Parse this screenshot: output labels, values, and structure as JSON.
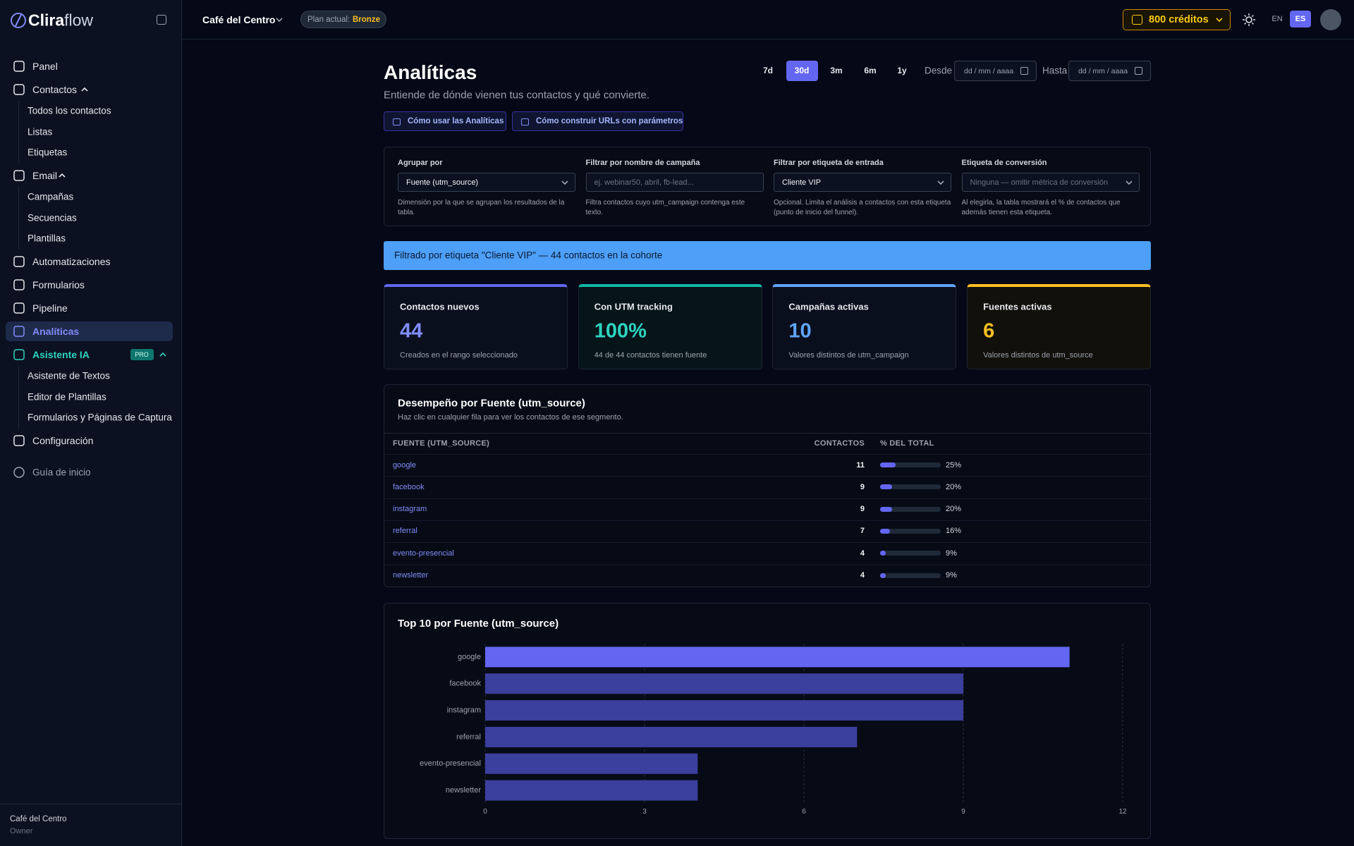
{
  "sidebar": {
    "brand_bold": "Clira",
    "brand_light": "flow",
    "nav": [
      {
        "label": "Panel"
      },
      {
        "label": "Contactos",
        "children": [
          "Todos los contactos",
          "Listas",
          "Etiquetas"
        ]
      },
      {
        "label": "Email",
        "children": [
          "Campañas",
          "Secuencias",
          "Plantillas"
        ]
      },
      {
        "label": "Automatizaciones"
      },
      {
        "label": "Formularios"
      },
      {
        "label": "Pipeline"
      },
      {
        "label": "Analíticas",
        "active": true
      },
      {
        "label": "Asistente IA",
        "badge": "PRO",
        "color": "#2dd4bf",
        "children": [
          "Asistente de Textos",
          "Editor de Plantillas",
          "Formularios y Páginas de Captura"
        ]
      },
      {
        "label": "Configuración"
      }
    ],
    "guide": "Guía de inicio",
    "user": {
      "name": "Café del Centro",
      "role": "Owner"
    }
  },
  "topbar": {
    "workspace": "Café del Centro",
    "plan_label": "Plan actual:",
    "plan": "Bronze",
    "credits": "800 créditos",
    "languages": [
      {
        "label": "EN"
      },
      {
        "label": "ES",
        "active": true
      }
    ]
  },
  "header": {
    "title": "Analíticas",
    "subtitle": "Entiende de dónde vienen tus contactos y qué convierte.",
    "ranges": [
      {
        "label": "7d"
      },
      {
        "label": "30d",
        "active": true
      },
      {
        "label": "3m"
      },
      {
        "label": "6m"
      },
      {
        "label": "1y"
      }
    ],
    "from_label": "Desde",
    "to_label": "Hasta",
    "date_placeholder": "dd / mm / aaaa",
    "help_links": [
      "Cómo usar las Analíticas",
      "Cómo construir URLs con parámetros"
    ]
  },
  "filters": [
    {
      "label": "Agrupar por",
      "value": "Fuente (utm_source)",
      "select": true,
      "help": "Dimensión por la que se agrupan los resultados de la tabla."
    },
    {
      "label": "Filtrar por nombre de campaña",
      "placeholder": "ej. webinar50, abril, fb-lead...",
      "help": "Filtra contactos cuyo utm_campaign contenga este texto."
    },
    {
      "label": "Filtrar por etiqueta de entrada",
      "value": "Cliente VIP",
      "select": true,
      "help": "Opcional. Limita el análisis a contactos con esta etiqueta (punto de inicio del funnel)."
    },
    {
      "label": "Etiqueta de conversión",
      "placeholder": "Ninguna — omitir métrica de conversión",
      "select": true,
      "help": "Al elegirla, la tabla mostrará el % de contactos que además tienen esta etiqueta."
    }
  ],
  "banner": "Filtrado por etiqueta \"Cliente VIP\" — 44 contactos en la cohorte",
  "kpis": [
    {
      "title": "Contactos nuevos",
      "value": "44",
      "sub": "Creados en el rango seleccionado",
      "color": "#818cf8",
      "bar": "#6366f1",
      "bg": "#0a0f1e"
    },
    {
      "title": "Con UTM tracking",
      "value": "100%",
      "sub": "44 de 44 contactos tienen fuente",
      "color": "#2dd4bf",
      "bar": "#14b8a6",
      "bg": "#06151a"
    },
    {
      "title": "Campañas activas",
      "value": "10",
      "sub": "Valores distintos de utm_campaign",
      "color": "#60a5fa",
      "bar": "#60a5fa",
      "bg": "#0a0f1e"
    },
    {
      "title": "Fuentes activas",
      "value": "6",
      "sub": "Valores distintos de utm_source",
      "color": "#fbbf24",
      "bar": "#fbbf24",
      "bg": "#12100a"
    }
  ],
  "table": {
    "title": "Desempeño por Fuente (utm_source)",
    "subtitle": "Haz clic en cualquier fila para ver los contactos de ese segmento.",
    "headers": [
      "FUENTE (UTM_SOURCE)",
      "CONTACTOS",
      "% DEL TOTAL"
    ],
    "rows": [
      {
        "source": "google",
        "contacts": 11,
        "percent": {
          "value": 25,
          "label": "25%"
        }
      },
      {
        "source": "facebook",
        "contacts": 9,
        "percent": {
          "value": 20,
          "label": "20%"
        }
      },
      {
        "source": "instagram",
        "contacts": 9,
        "percent": {
          "value": 20,
          "label": "20%"
        }
      },
      {
        "source": "referral",
        "contacts": 7,
        "percent": {
          "value": 16,
          "label": "16%"
        }
      },
      {
        "source": "evento-presencial",
        "contacts": 4,
        "percent": {
          "value": 9,
          "label": "9%"
        }
      },
      {
        "source": "newsletter",
        "contacts": 4,
        "percent": {
          "value": 9,
          "label": "9%"
        }
      }
    ]
  },
  "chart_data": {
    "type": "bar",
    "orientation": "horizontal",
    "title": "Top 10 por Fuente (utm_source)",
    "categories": [
      "google",
      "facebook",
      "instagram",
      "referral",
      "evento-presencial",
      "newsletter"
    ],
    "values": [
      11,
      9,
      9,
      7,
      4,
      4
    ],
    "colors": [
      "#6366f1",
      "#3b3f9e",
      "#3b3f9e",
      "#3b3f9e",
      "#3b3f9e",
      "#3b3f9e"
    ],
    "xlim": [
      0,
      12
    ],
    "xticks": [
      0,
      3,
      6,
      9,
      12
    ],
    "grid": true
  }
}
